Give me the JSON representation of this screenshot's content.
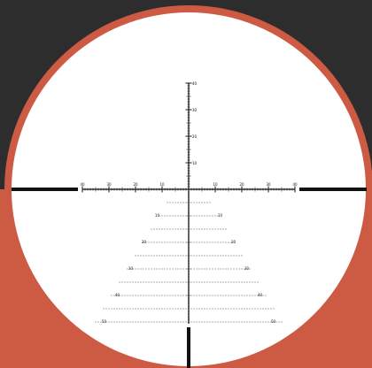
{
  "colors": {
    "background_dark": "#2d2d2d",
    "ring_orange": "#cd5a43",
    "lens_white": "#ffffff",
    "reticle_black": "#111111"
  },
  "reticle": {
    "horizontal_labels": [
      "40",
      "30",
      "20",
      "10",
      "10",
      "20",
      "30",
      "40"
    ],
    "vertical_labels": [
      "40",
      "30",
      "20",
      "10"
    ],
    "holdover_labels": {
      "left": [
        "10",
        "20",
        "30",
        "40",
        "50"
      ],
      "right": [
        "10",
        "20",
        "30",
        "40",
        "50"
      ]
    }
  }
}
